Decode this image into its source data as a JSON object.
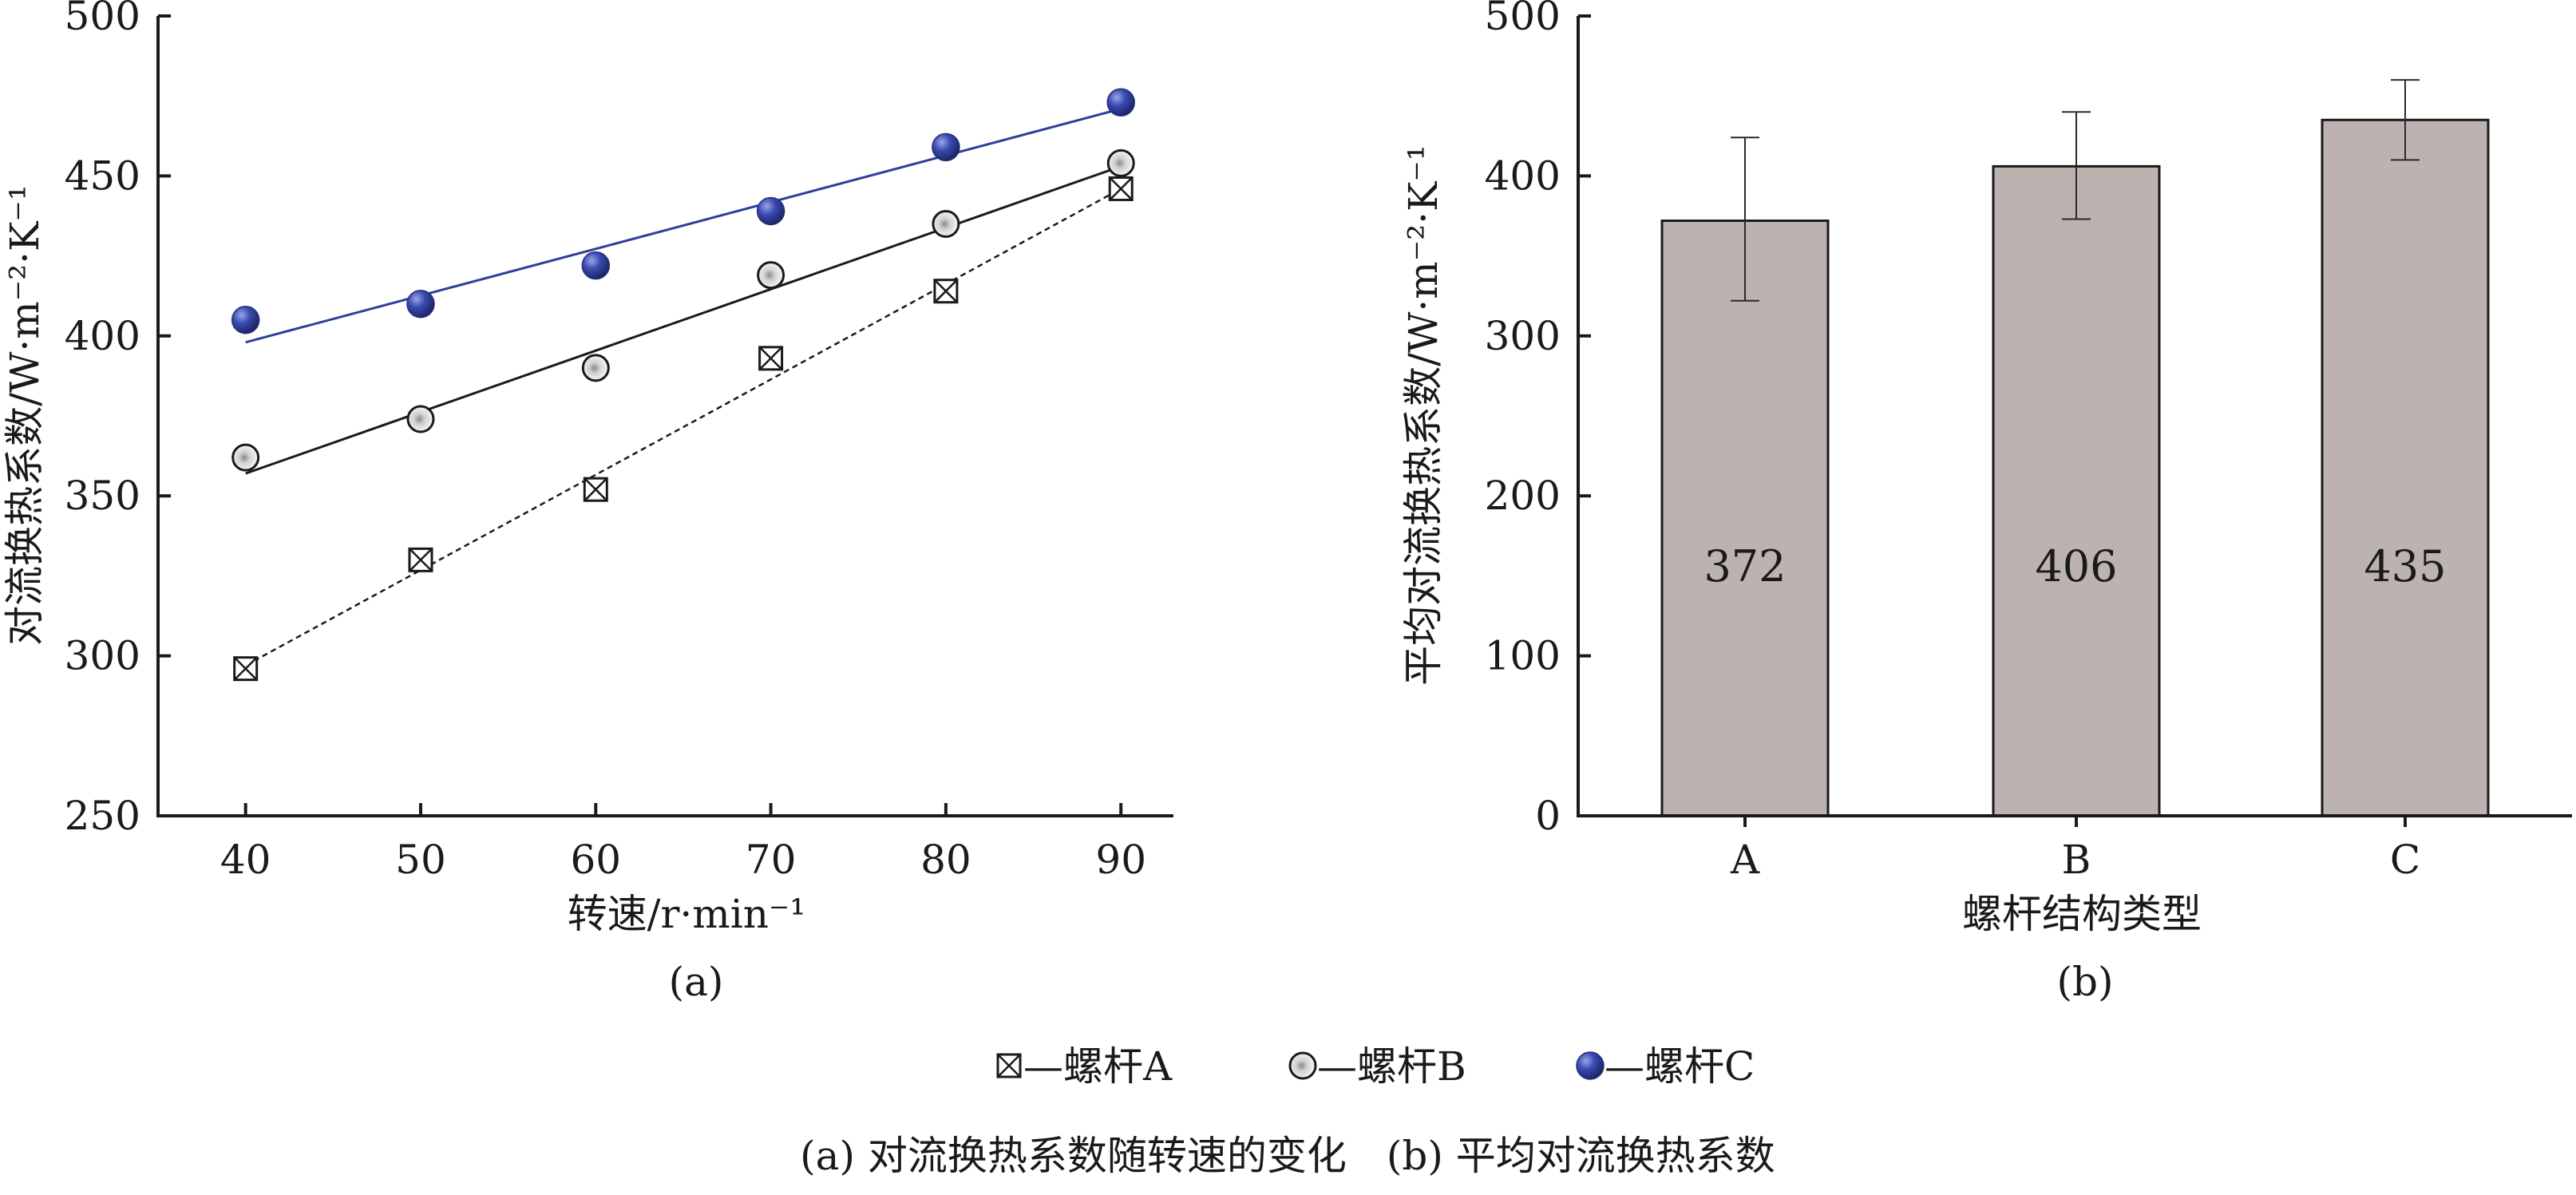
{
  "chart_data": [
    {
      "type": "scatter",
      "panel_label": "(a)",
      "xlabel": "转速/r·min⁻¹",
      "ylabel": "对流换热系数/W·m⁻²·K⁻¹",
      "xlim": [
        35,
        93
      ],
      "ylim": [
        250,
        500
      ],
      "xticks": [
        40,
        50,
        60,
        70,
        80,
        90
      ],
      "yticks": [
        250,
        300,
        350,
        400,
        450,
        500
      ],
      "x": [
        40,
        50,
        60,
        70,
        80,
        90
      ],
      "series": [
        {
          "name": "螺杆A",
          "marker": "boxed-x",
          "color": "#1a1a1a",
          "line": "dashed",
          "values": [
            296,
            330,
            352,
            393,
            414,
            446
          ],
          "fit": [
            297,
            446
          ]
        },
        {
          "name": "螺杆B",
          "marker": "open-circle",
          "color": "#1a1a1a",
          "line": "solid",
          "values": [
            362,
            374,
            390,
            419,
            435,
            454
          ],
          "fit": [
            357,
            453
          ]
        },
        {
          "name": "螺杆C",
          "marker": "filled-circle",
          "color": "#2e3f9c",
          "line": "solid",
          "values": [
            405,
            410,
            422,
            439,
            459,
            473
          ],
          "fit": [
            398,
            471
          ]
        }
      ]
    },
    {
      "type": "bar",
      "panel_label": "(b)",
      "xlabel": "螺杆结构类型",
      "ylabel": "平均对流换热系数/W·m⁻²·K⁻¹",
      "ylim": [
        0,
        500
      ],
      "yticks": [
        0,
        100,
        200,
        300,
        400,
        500
      ],
      "categories": [
        "A",
        "B",
        "C"
      ],
      "values": [
        372,
        406,
        435
      ],
      "value_labels": [
        "372",
        "406",
        "435"
      ],
      "error_low": [
        322,
        373,
        410
      ],
      "error_high": [
        424,
        440,
        460
      ],
      "bar_color": "#bcb3b0"
    }
  ],
  "legend": {
    "items": [
      {
        "marker": "boxed-x",
        "text": "—螺杆A"
      },
      {
        "marker": "open-circle",
        "text": "—螺杆B"
      },
      {
        "marker": "filled-circle",
        "text": "—螺杆C"
      }
    ]
  },
  "caption": "(a) 对流换热系数随转速的变化　(b) 平均对流换热系数"
}
